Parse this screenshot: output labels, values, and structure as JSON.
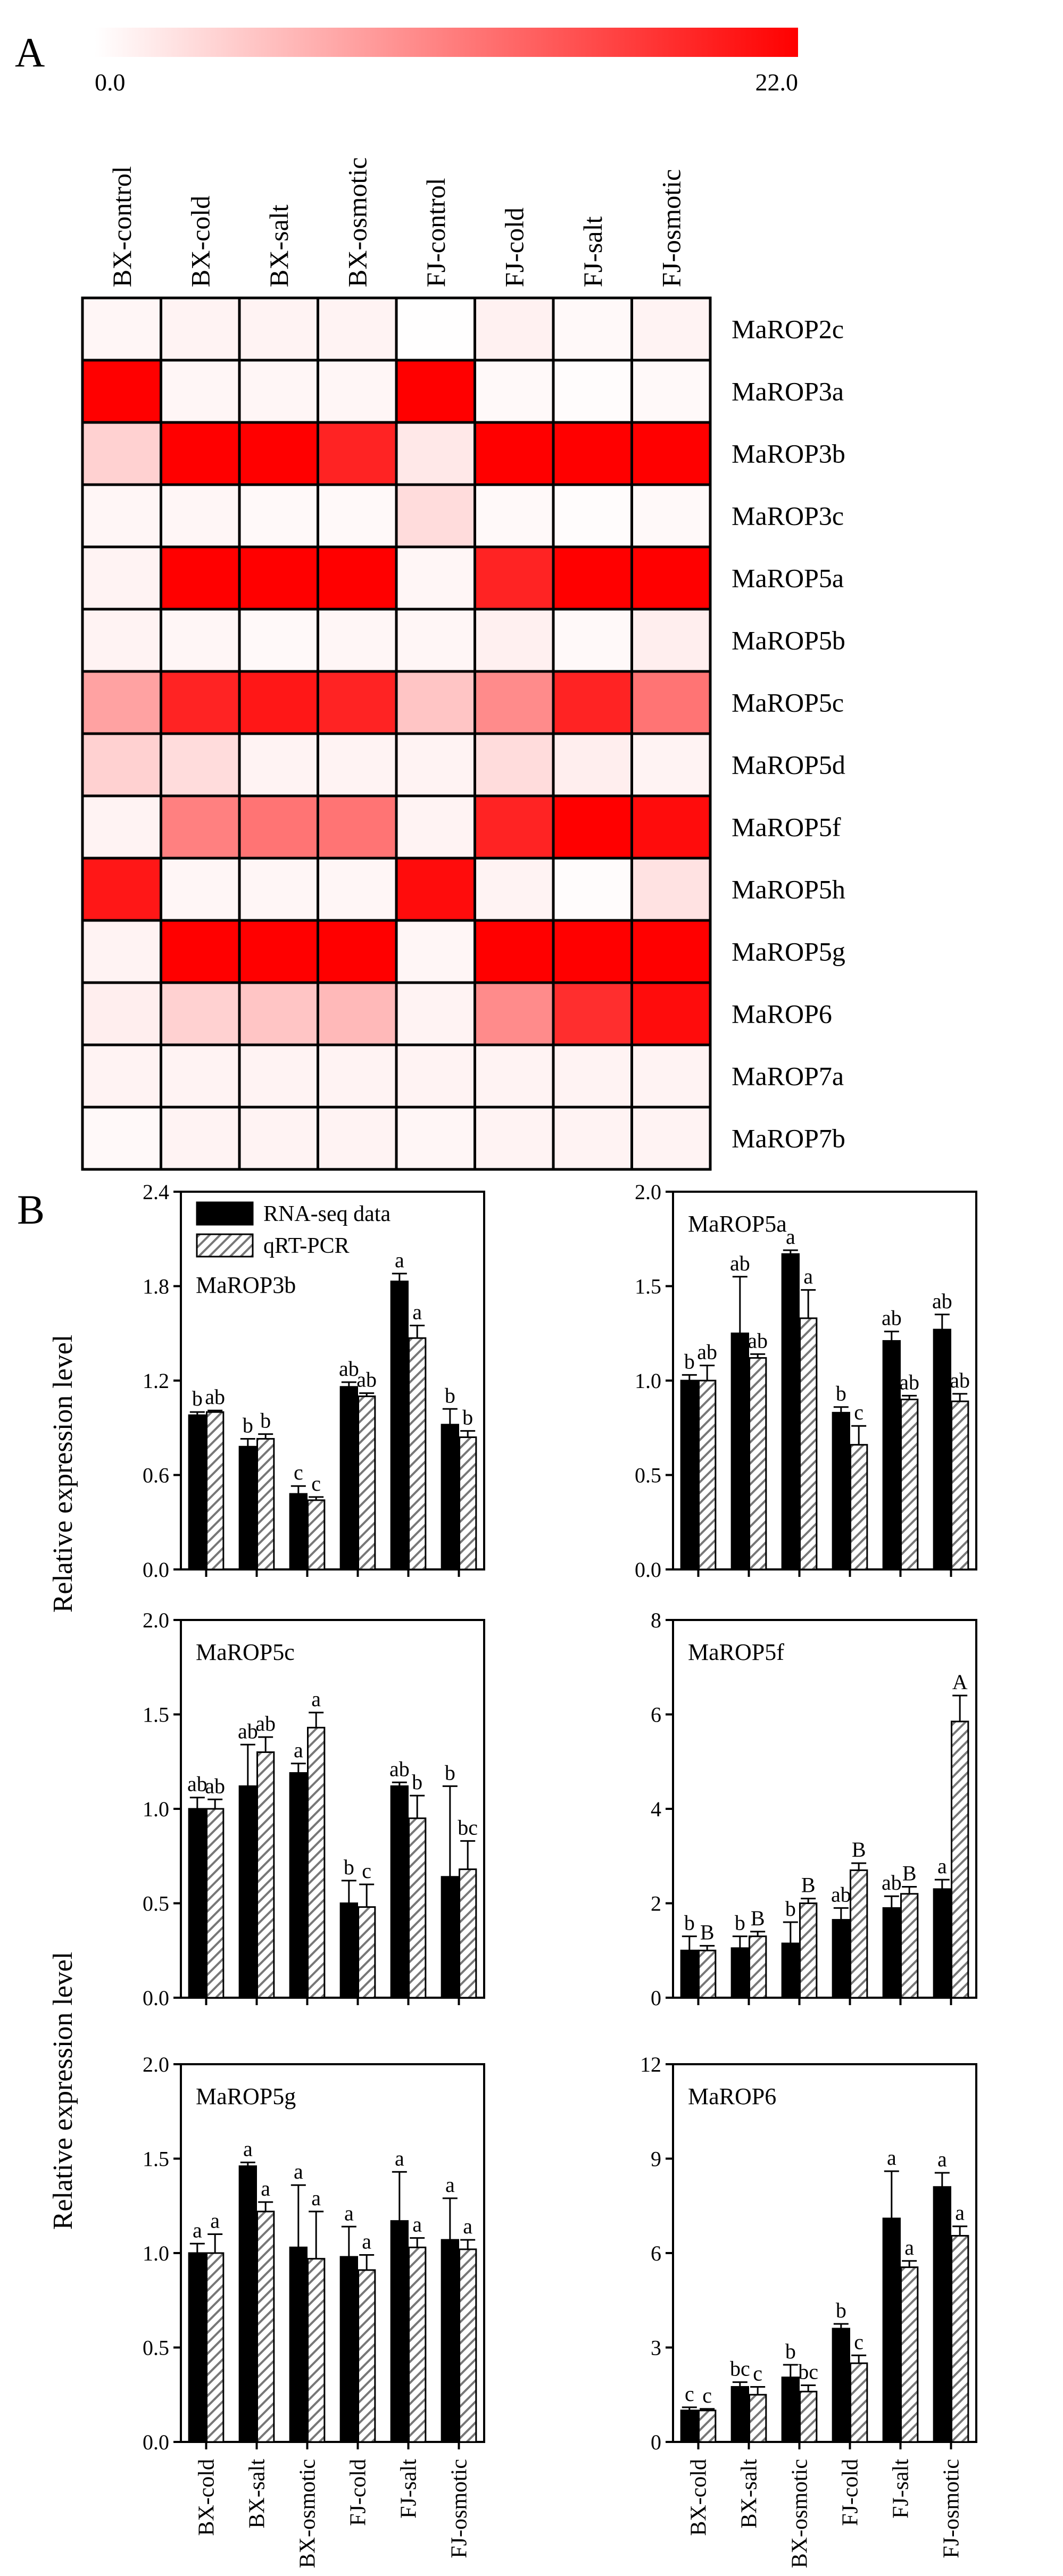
{
  "figure": {
    "panel_a_label": "A",
    "panel_b_label": "B",
    "hatch_color": "#777777",
    "bar_color": "#000000"
  },
  "chart_data": [
    {
      "type": "heatmap",
      "title": "",
      "colorscale": {
        "min": 0.0,
        "max": 22.0,
        "min_label": "0.0",
        "max_label": "22.0",
        "min_color": "#ffffff",
        "max_color": "#ff0000"
      },
      "columns": [
        "BX-control",
        "BX-cold",
        "BX-salt",
        "BX-osmotic",
        "FJ-control",
        "FJ-cold",
        "FJ-salt",
        "FJ-osmotic"
      ],
      "rows": [
        "MaROP2c",
        "MaROP3a",
        "MaROP3b",
        "MaROP3c",
        "MaROP5a",
        "MaROP5b",
        "MaROP5c",
        "MaROP5d",
        "MaROP5f",
        "MaROP5h",
        "MaROP5g",
        "MaROP6",
        "MaROP7a",
        "MaROP7b"
      ],
      "values": [
        [
          0.8,
          1.0,
          1.0,
          1.0,
          0.1,
          1.2,
          0.5,
          1.0
        ],
        [
          22.0,
          0.8,
          0.8,
          0.8,
          22.0,
          0.5,
          0.3,
          0.5
        ],
        [
          4.0,
          22.0,
          22.0,
          19.0,
          2.0,
          22.0,
          22.0,
          22.0
        ],
        [
          0.8,
          0.8,
          0.5,
          0.5,
          3.0,
          0.5,
          0.3,
          0.5
        ],
        [
          1.0,
          22.0,
          22.0,
          22.0,
          0.8,
          19.0,
          22.0,
          22.0
        ],
        [
          1.0,
          0.8,
          0.5,
          0.8,
          0.8,
          1.3,
          0.5,
          1.5
        ],
        [
          8.0,
          19.0,
          20.0,
          19.0,
          5.0,
          10.0,
          19.0,
          12.0
        ],
        [
          4.0,
          3.0,
          1.0,
          1.0,
          1.0,
          3.0,
          1.5,
          1.0
        ],
        [
          1.0,
          11.0,
          12.0,
          12.0,
          1.0,
          19.0,
          22.0,
          21.0
        ],
        [
          20.0,
          0.8,
          0.8,
          0.8,
          21.0,
          1.0,
          0.3,
          2.5
        ],
        [
          1.0,
          22.0,
          22.0,
          22.0,
          0.8,
          22.0,
          22.0,
          22.0
        ],
        [
          1.5,
          4.0,
          5.0,
          6.0,
          1.0,
          10.0,
          18.0,
          21.0
        ],
        [
          1.0,
          1.0,
          1.0,
          1.0,
          1.0,
          1.0,
          1.0,
          1.0
        ],
        [
          0.5,
          1.0,
          1.0,
          1.0,
          0.8,
          1.0,
          1.0,
          1.0
        ]
      ]
    },
    {
      "type": "bar",
      "title": "MaROP3b",
      "xlabel": "",
      "ylabel": "Relative expression level",
      "ylim": [
        0.0,
        2.4
      ],
      "yticks": [
        "0.0",
        "0.6",
        "1.2",
        "1.8",
        "2.4"
      ],
      "categories": [
        "BX-cold",
        "BX-salt",
        "BX-osmotic",
        "FJ-cold",
        "FJ-salt",
        "FJ-osmotic"
      ],
      "legend": [
        "RNA-seq data",
        "qRT-PCR"
      ],
      "series": [
        {
          "name": "RNA-seq data",
          "values": [
            0.98,
            0.78,
            0.48,
            1.16,
            1.83,
            0.92
          ],
          "errors": [
            0.02,
            0.05,
            0.05,
            0.03,
            0.05,
            0.1
          ],
          "labels": [
            "b",
            "b",
            "c",
            "ab",
            "a",
            "b"
          ]
        },
        {
          "name": "qRT-PCR",
          "values": [
            1.0,
            0.83,
            0.44,
            1.1,
            1.47,
            0.84
          ],
          "errors": [
            0.01,
            0.03,
            0.02,
            0.02,
            0.08,
            0.04
          ],
          "labels": [
            "ab",
            "b",
            "c",
            "ab",
            "a",
            "b"
          ]
        }
      ]
    },
    {
      "type": "bar",
      "title": "MaROP5a",
      "xlabel": "",
      "ylabel": "",
      "ylim": [
        0.0,
        2.0
      ],
      "yticks": [
        "0.0",
        "0.5",
        "1.0",
        "1.5",
        "2.0"
      ],
      "categories": [
        "BX-cold",
        "BX-salt",
        "BX-osmotic",
        "FJ-cold",
        "FJ-salt",
        "FJ-osmotic"
      ],
      "series": [
        {
          "name": "RNA-seq data",
          "values": [
            1.0,
            1.25,
            1.67,
            0.83,
            1.21,
            1.27
          ],
          "errors": [
            0.03,
            0.3,
            0.02,
            0.03,
            0.05,
            0.08
          ],
          "labels": [
            "b",
            "ab",
            "a",
            "b",
            "ab",
            "ab"
          ]
        },
        {
          "name": "qRT-PCR",
          "values": [
            1.0,
            1.12,
            1.33,
            0.66,
            0.9,
            0.89
          ],
          "errors": [
            0.08,
            0.02,
            0.15,
            0.1,
            0.02,
            0.04
          ],
          "labels": [
            "ab",
            "ab",
            "a",
            "c",
            "ab",
            "ab"
          ]
        }
      ]
    },
    {
      "type": "bar",
      "title": "MaROP5c",
      "xlabel": "",
      "ylabel": "",
      "ylim": [
        0.0,
        2.0
      ],
      "yticks": [
        "0.0",
        "0.5",
        "1.0",
        "1.5",
        "2.0"
      ],
      "categories": [
        "BX-cold",
        "BX-salt",
        "BX-osmotic",
        "FJ-cold",
        "FJ-salt",
        "FJ-osmotic"
      ],
      "series": [
        {
          "name": "RNA-seq data",
          "values": [
            1.0,
            1.12,
            1.19,
            0.5,
            1.12,
            0.64
          ],
          "errors": [
            0.06,
            0.22,
            0.05,
            0.12,
            0.02,
            0.48
          ],
          "labels": [
            "ab",
            "ab",
            "a",
            "b",
            "ab",
            "b"
          ]
        },
        {
          "name": "qRT-PCR",
          "values": [
            1.0,
            1.3,
            1.43,
            0.48,
            0.95,
            0.68
          ],
          "errors": [
            0.05,
            0.08,
            0.08,
            0.12,
            0.12,
            0.15
          ],
          "labels": [
            "ab",
            "ab",
            "a",
            "c",
            "b",
            "bc"
          ]
        }
      ]
    },
    {
      "type": "bar",
      "title": "MaROP5f",
      "xlabel": "",
      "ylabel": "",
      "ylim": [
        0,
        8
      ],
      "yticks": [
        "0",
        "2",
        "4",
        "6",
        "8"
      ],
      "categories": [
        "BX-cold",
        "BX-salt",
        "BX-osmotic",
        "FJ-cold",
        "FJ-salt",
        "FJ-osmotic"
      ],
      "series": [
        {
          "name": "RNA-seq data",
          "values": [
            1.0,
            1.05,
            1.15,
            1.65,
            1.9,
            2.3
          ],
          "errors": [
            0.3,
            0.25,
            0.45,
            0.25,
            0.25,
            0.2
          ],
          "labels": [
            "b",
            "b",
            "b",
            "ab",
            "ab",
            "a"
          ]
        },
        {
          "name": "qRT-PCR",
          "values": [
            1.0,
            1.3,
            2.0,
            2.7,
            2.2,
            5.85
          ],
          "errors": [
            0.1,
            0.1,
            0.1,
            0.15,
            0.15,
            0.55
          ],
          "labels": [
            "B",
            "B",
            "B",
            "B",
            "B",
            "A"
          ]
        }
      ]
    },
    {
      "type": "bar",
      "title": "MaROP5g",
      "xlabel": "",
      "ylabel": "Relative expression level",
      "ylim": [
        0.0,
        2.0
      ],
      "yticks": [
        "0.0",
        "0.5",
        "1.0",
        "1.5",
        "2.0"
      ],
      "categories": [
        "BX-cold",
        "BX-salt",
        "BX-osmotic",
        "FJ-cold",
        "FJ-salt",
        "FJ-osmotic"
      ],
      "series": [
        {
          "name": "RNA-seq data",
          "values": [
            1.0,
            1.46,
            1.03,
            0.98,
            1.17,
            1.07
          ],
          "errors": [
            0.05,
            0.02,
            0.33,
            0.16,
            0.26,
            0.22
          ],
          "labels": [
            "a",
            "a",
            "a",
            "a",
            "a",
            "a"
          ]
        },
        {
          "name": "qRT-PCR",
          "values": [
            1.0,
            1.22,
            0.97,
            0.91,
            1.03,
            1.02
          ],
          "errors": [
            0.1,
            0.05,
            0.25,
            0.08,
            0.05,
            0.05
          ],
          "labels": [
            "a",
            "a",
            "a",
            "a",
            "a",
            "a"
          ]
        }
      ]
    },
    {
      "type": "bar",
      "title": "MaROP6",
      "xlabel": "",
      "ylabel": "",
      "ylim": [
        0,
        12
      ],
      "yticks": [
        "0",
        "3",
        "6",
        "9",
        "12"
      ],
      "categories": [
        "BX-cold",
        "BX-salt",
        "BX-osmotic",
        "FJ-cold",
        "FJ-salt",
        "FJ-osmotic"
      ],
      "series": [
        {
          "name": "RNA-seq data",
          "values": [
            1.0,
            1.75,
            2.05,
            3.6,
            7.1,
            8.1
          ],
          "errors": [
            0.1,
            0.15,
            0.4,
            0.15,
            1.5,
            0.45
          ],
          "labels": [
            "c",
            "bc",
            "b",
            "b",
            "a",
            "a"
          ]
        },
        {
          "name": "qRT-PCR",
          "values": [
            1.0,
            1.5,
            1.6,
            2.5,
            5.55,
            6.55
          ],
          "errors": [
            0.05,
            0.25,
            0.2,
            0.25,
            0.2,
            0.3
          ],
          "labels": [
            "c",
            "c",
            "bc",
            "c",
            "a",
            "a"
          ]
        }
      ]
    }
  ]
}
